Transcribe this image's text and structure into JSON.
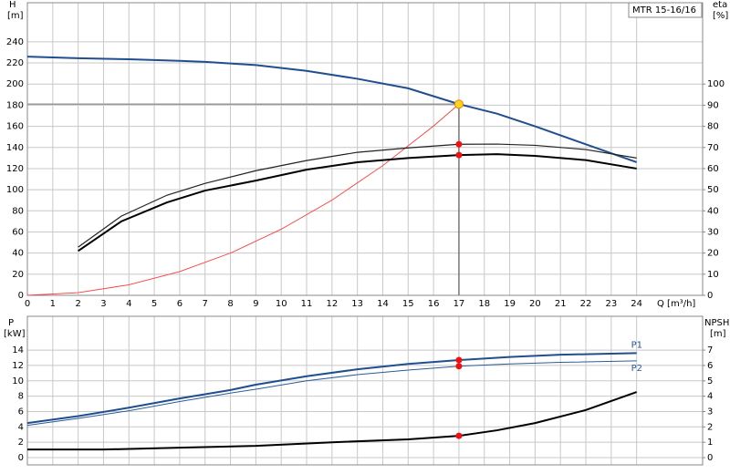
{
  "chart_data": [
    {
      "type": "line",
      "title": "MTR 15-16/16",
      "xlabel": "Q [m³/h]",
      "ylabel": "H",
      "yunit": "[m]",
      "y2label": "eta",
      "y2unit": "[%]",
      "xlim": [
        0,
        26.6
      ],
      "xticks": [
        0,
        1,
        2,
        3,
        4,
        5,
        6,
        7,
        8,
        9,
        10,
        11,
        12,
        13,
        14,
        15,
        16,
        17,
        18,
        19,
        20,
        21,
        22,
        23,
        24
      ],
      "xtick_labels": true,
      "ylim": [
        0,
        277
      ],
      "yticks": [
        0,
        20,
        40,
        60,
        80,
        100,
        120,
        140,
        160,
        180,
        200,
        220,
        240
      ],
      "y2lim": [
        0,
        138.5
      ],
      "y2ticks": [
        0,
        10,
        20,
        30,
        40,
        50,
        60,
        70,
        80,
        90,
        100
      ],
      "grid": true,
      "series": [
        {
          "color": "#1f4f8f",
          "line_width": 2,
          "x": [
            0,
            2,
            4,
            6,
            7,
            8,
            9,
            11,
            13,
            15,
            17,
            18.5,
            20,
            22,
            24
          ],
          "values": [
            226,
            224.5,
            223.5,
            222,
            221,
            219.5,
            218,
            212.5,
            205,
            196,
            181,
            172,
            160,
            143,
            126
          ]
        },
        {
          "color": "#ff3b3b",
          "line_width": 0.9,
          "x": [
            0,
            2,
            4,
            6,
            8,
            10,
            12,
            14,
            16,
            17
          ],
          "values": [
            0,
            2.5,
            10,
            22.5,
            40,
            62.6,
            90.2,
            122.8,
            160.3,
            181
          ]
        },
        {
          "color": "#222222",
          "line_width": 1.2,
          "axis": "y2",
          "x": [
            2,
            3.7,
            5.5,
            7,
            9,
            11,
            13,
            15,
            17,
            18.5,
            20,
            22,
            24
          ],
          "values": [
            22.8,
            37.5,
            47.4,
            53,
            59,
            63.8,
            67.7,
            69.8,
            71.5,
            71.6,
            71,
            69,
            65
          ]
        },
        {
          "color": "#000000",
          "line_width": 2,
          "axis": "y2",
          "x": [
            2,
            3.7,
            5.5,
            7,
            9,
            11,
            13,
            15,
            17,
            18.5,
            20,
            22,
            24
          ],
          "values": [
            21,
            35,
            44,
            49.6,
            54.3,
            59.5,
            63,
            65,
            66.4,
            66.8,
            66,
            64,
            60
          ]
        }
      ],
      "duty_point": {
        "x": 17,
        "y": 181
      },
      "points": [
        {
          "x": 17,
          "y": 71.5,
          "axis": "y2"
        },
        {
          "x": 17,
          "y": 66.4,
          "axis": "y2"
        }
      ]
    },
    {
      "type": "line",
      "ylabel": "P",
      "yunit": "[kW]",
      "y2label": "NPSH",
      "y2unit": "[m]",
      "xlim": [
        0,
        26.6
      ],
      "xticks": [
        0,
        1,
        2,
        3,
        4,
        5,
        6,
        7,
        8,
        9,
        10,
        11,
        12,
        13,
        14,
        15,
        16,
        17,
        18,
        19,
        20,
        21,
        22,
        23,
        24
      ],
      "xtick_labels": false,
      "ylim": [
        -0.95,
        18.4
      ],
      "yticks": [
        0,
        2,
        4,
        6,
        8,
        10,
        12,
        14
      ],
      "y2lim": [
        -0.47,
        9.2
      ],
      "y2ticks": [
        0,
        1,
        2,
        3,
        4,
        5,
        6,
        7
      ],
      "grid": true,
      "series": [
        {
          "name": "P1",
          "label_position": "above",
          "color": "#1f4f8f",
          "line_width": 2,
          "x": [
            0,
            2,
            4,
            6,
            8,
            9,
            11,
            13,
            15,
            17,
            19,
            21,
            24
          ],
          "values": [
            4.5,
            5.4,
            6.5,
            7.7,
            8.8,
            9.5,
            10.6,
            11.5,
            12.2,
            12.7,
            13.1,
            13.4,
            13.6
          ]
        },
        {
          "name": "P2",
          "label_position": "below",
          "color": "#2b5c9a",
          "line_width": 1,
          "x": [
            0,
            2,
            4,
            6,
            8,
            9,
            11,
            13,
            15,
            17,
            19,
            21,
            24
          ],
          "values": [
            4.2,
            5.1,
            6.1,
            7.3,
            8.4,
            8.9,
            10,
            10.8,
            11.4,
            11.9,
            12.2,
            12.4,
            12.6
          ]
        },
        {
          "color": "#000000",
          "line_width": 2,
          "axis": "y2",
          "x": [
            0,
            3,
            6,
            9,
            12,
            15,
            17,
            18.5,
            20,
            22,
            24
          ],
          "values": [
            0.53,
            0.53,
            0.65,
            0.77,
            1,
            1.19,
            1.42,
            1.78,
            2.25,
            3.1,
            4.27
          ]
        }
      ],
      "points": [
        {
          "x": 17,
          "y": 12.7
        },
        {
          "x": 17,
          "y": 11.9
        },
        {
          "x": 17,
          "y": 1.42,
          "axis": "y2"
        }
      ]
    }
  ]
}
